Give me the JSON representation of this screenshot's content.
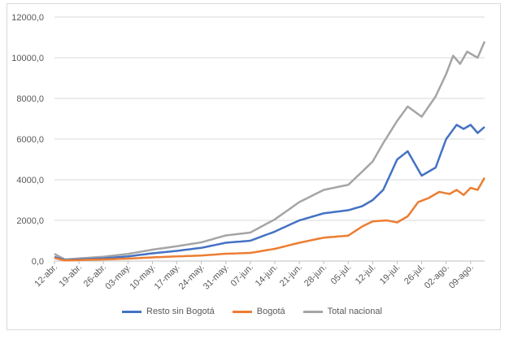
{
  "chart_data": {
    "type": "line",
    "ylim": [
      0,
      12000
    ],
    "yticks": [
      "0,0",
      "2000,0",
      "4000,0",
      "6000,0",
      "8000,0",
      "10000,0",
      "12000,0"
    ],
    "x_tick_labels": [
      "12-abr.",
      "19-abr.",
      "26-abr.",
      "03-may.",
      "10-may.",
      "17-may.",
      "24-may.",
      "31-may.",
      "07-jun.",
      "14-jun.",
      "21-jun.",
      "28-jun.",
      "05-jul.",
      "12-jul.",
      "19-jul.",
      "26-jul.",
      "02-ago.",
      "09-ago."
    ],
    "grid": true,
    "legend_position": "bottom",
    "series": [
      {
        "name": "Resto sin Bogotá",
        "color": "#4472C4",
        "anchors": [
          [
            0,
            200
          ],
          [
            3,
            50
          ],
          [
            7,
            80
          ],
          [
            14,
            130
          ],
          [
            21,
            230
          ],
          [
            28,
            380
          ],
          [
            35,
            500
          ],
          [
            42,
            650
          ],
          [
            49,
            900
          ],
          [
            56,
            1000
          ],
          [
            63,
            1450
          ],
          [
            70,
            2000
          ],
          [
            77,
            2350
          ],
          [
            84,
            2500
          ],
          [
            88,
            2700
          ],
          [
            91,
            3000
          ],
          [
            94,
            3500
          ],
          [
            98,
            5000
          ],
          [
            101,
            5400
          ],
          [
            105,
            4200
          ],
          [
            109,
            4600
          ],
          [
            112,
            6000
          ],
          [
            115,
            6700
          ],
          [
            117,
            6500
          ],
          [
            119,
            6700
          ],
          [
            121,
            6300
          ],
          [
            123,
            6600
          ]
        ]
      },
      {
        "name": "Bogotá",
        "color": "#ED7D31",
        "anchors": [
          [
            0,
            150
          ],
          [
            3,
            30
          ],
          [
            7,
            50
          ],
          [
            14,
            80
          ],
          [
            21,
            120
          ],
          [
            28,
            180
          ],
          [
            35,
            230
          ],
          [
            42,
            270
          ],
          [
            49,
            360
          ],
          [
            56,
            400
          ],
          [
            63,
            600
          ],
          [
            70,
            900
          ],
          [
            77,
            1150
          ],
          [
            84,
            1250
          ],
          [
            88,
            1700
          ],
          [
            91,
            1950
          ],
          [
            95,
            2000
          ],
          [
            98,
            1900
          ],
          [
            101,
            2200
          ],
          [
            104,
            2900
          ],
          [
            107,
            3100
          ],
          [
            110,
            3400
          ],
          [
            113,
            3300
          ],
          [
            115,
            3500
          ],
          [
            117,
            3250
          ],
          [
            119,
            3600
          ],
          [
            121,
            3500
          ],
          [
            123,
            4100
          ]
        ]
      },
      {
        "name": "Total nacional",
        "color": "#A5A5A5",
        "anchors": [
          [
            0,
            350
          ],
          [
            3,
            80
          ],
          [
            7,
            130
          ],
          [
            14,
            210
          ],
          [
            21,
            350
          ],
          [
            28,
            560
          ],
          [
            35,
            730
          ],
          [
            42,
            920
          ],
          [
            49,
            1260
          ],
          [
            56,
            1400
          ],
          [
            63,
            2050
          ],
          [
            70,
            2900
          ],
          [
            77,
            3500
          ],
          [
            84,
            3750
          ],
          [
            88,
            4400
          ],
          [
            91,
            4900
          ],
          [
            94,
            5800
          ],
          [
            98,
            6900
          ],
          [
            101,
            7600
          ],
          [
            105,
            7100
          ],
          [
            109,
            8100
          ],
          [
            112,
            9200
          ],
          [
            114,
            10100
          ],
          [
            116,
            9700
          ],
          [
            118,
            10300
          ],
          [
            121,
            10000
          ],
          [
            123,
            10800
          ]
        ]
      }
    ]
  }
}
